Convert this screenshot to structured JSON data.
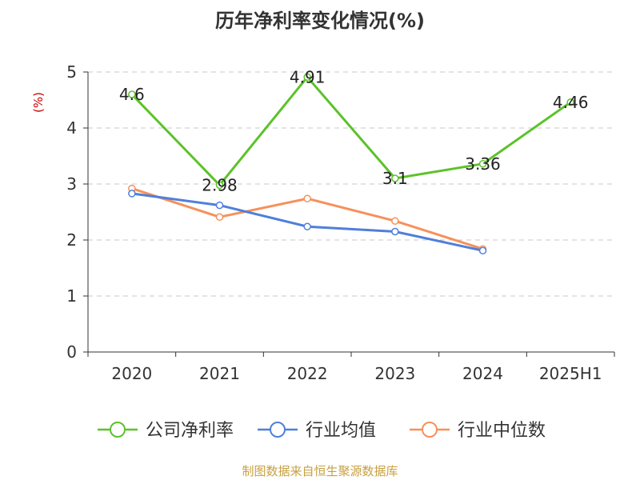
{
  "chart_data": {
    "type": "line",
    "title": "历年净利率变化情况(%)",
    "ylabel": "(%)",
    "xlabel": "",
    "categories": [
      "2020",
      "2021",
      "2022",
      "2023",
      "2024",
      "2025H1"
    ],
    "ylim": [
      0,
      5
    ],
    "yticks": [
      0,
      1,
      2,
      3,
      4,
      5
    ],
    "grid": true,
    "legend_position": "bottom",
    "series": [
      {
        "name": "公司净利率",
        "color": "#5cc22a",
        "values": [
          4.6,
          2.98,
          4.91,
          3.1,
          3.36,
          4.46
        ],
        "show_labels": true
      },
      {
        "name": "行业均值",
        "color": "#4f7fdb",
        "values": [
          2.83,
          2.62,
          2.24,
          2.15,
          1.81,
          null
        ],
        "show_labels": false
      },
      {
        "name": "行业中位数",
        "color": "#f5915a",
        "values": [
          2.92,
          2.41,
          2.74,
          2.34,
          1.84,
          null
        ],
        "show_labels": false
      }
    ]
  },
  "footer": {
    "source": "制图数据来自恒生聚源数据库"
  }
}
